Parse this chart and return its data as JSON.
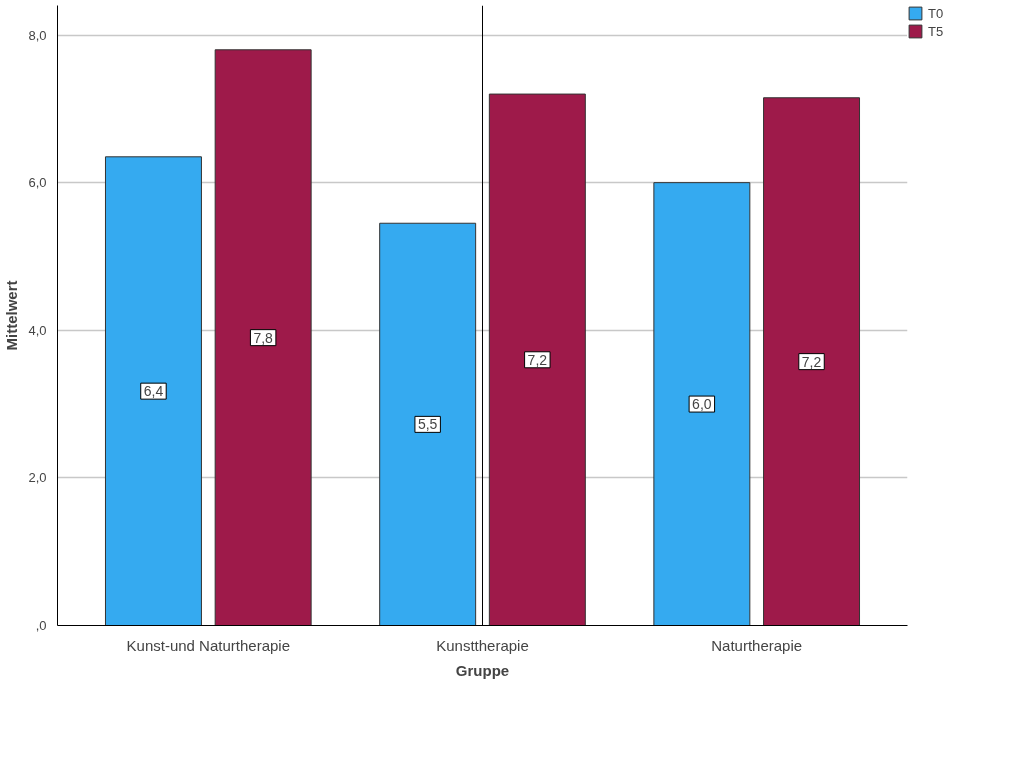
{
  "chart_data": {
    "type": "bar",
    "xlabel": "Gruppe",
    "ylabel": "Mittelwert",
    "categories": [
      "Kunst-und Naturtherapie",
      "Kunsttherapie",
      "Naturtherapie"
    ],
    "series": [
      {
        "name": "T0",
        "color": "#35aaf0",
        "values": [
          6.35,
          5.45,
          6.0
        ],
        "value_labels": [
          "6,4",
          "5,5",
          "6,0"
        ]
      },
      {
        "name": "T5",
        "color": "#9e1a4a",
        "values": [
          7.8,
          7.2,
          7.15
        ],
        "value_labels": [
          "7,8",
          "7,2",
          "7,2"
        ]
      }
    ],
    "ylim": [
      0,
      8.4
    ],
    "yticks": [
      {
        "value": 0,
        "label": ",0"
      },
      {
        "value": 2,
        "label": "2,0"
      },
      {
        "value": 4,
        "label": "4,0"
      },
      {
        "value": 6,
        "label": "6,0"
      },
      {
        "value": 8,
        "label": "8,0"
      }
    ],
    "grid": "y",
    "legend": "top right",
    "ref_lines": [
      {
        "axis": "x",
        "value": "Kunsttherapie",
        "color": "#000000"
      }
    ]
  }
}
